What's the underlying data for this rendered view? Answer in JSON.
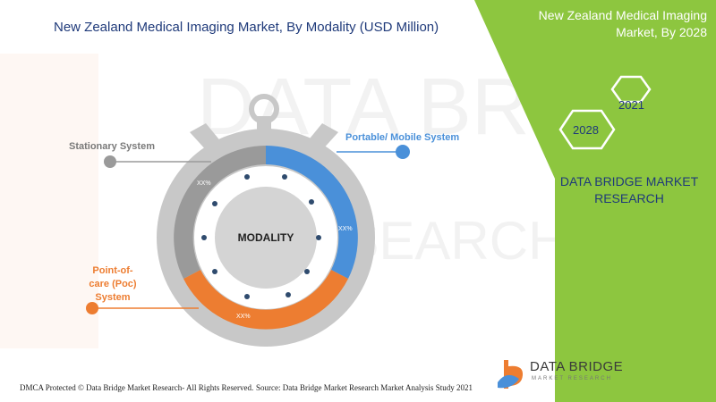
{
  "title": "New Zealand Medical Imaging Market, By Modality (USD Million)",
  "panel": {
    "title_line1": "New Zealand Medical Imaging",
    "title_line2": "Market, By 2028",
    "year_2021": "2021",
    "year_2028": "2028",
    "brand_line1": "DATA BRIDGE MARKET",
    "brand_line2": "RESEARCH"
  },
  "chart_data": {
    "type": "pie",
    "center_label": "MODALITY",
    "segments": [
      {
        "name": "Portable/ Mobile System",
        "label": "XX%",
        "color": "#4a90d9"
      },
      {
        "name": "Point-of-care (Poc) System",
        "label": "XX%",
        "color": "#ed7d31"
      },
      {
        "name": "Stationary System",
        "label": "XX%",
        "color": "#9a9a9a"
      }
    ]
  },
  "labels": {
    "stationary": "Stationary System",
    "portable": "Portable/ Mobile System",
    "poc_line1": "Point-of-",
    "poc_line2": "care (Poc) System"
  },
  "footer": {
    "left": "DMCA Protected © Data Bridge Market Research- All Rights Reserved.",
    "right": "Source: Data Bridge Market Research Market Analysis Study 2021"
  },
  "logo": {
    "name": "DATA BRIDGE",
    "sub": "MARKET RESEARCH"
  },
  "colors": {
    "green_panel": "#8dc63f",
    "title_blue": "#1f3a7a",
    "blue": "#4a90d9",
    "orange": "#ed7d31",
    "grey": "#9a9a9a"
  }
}
